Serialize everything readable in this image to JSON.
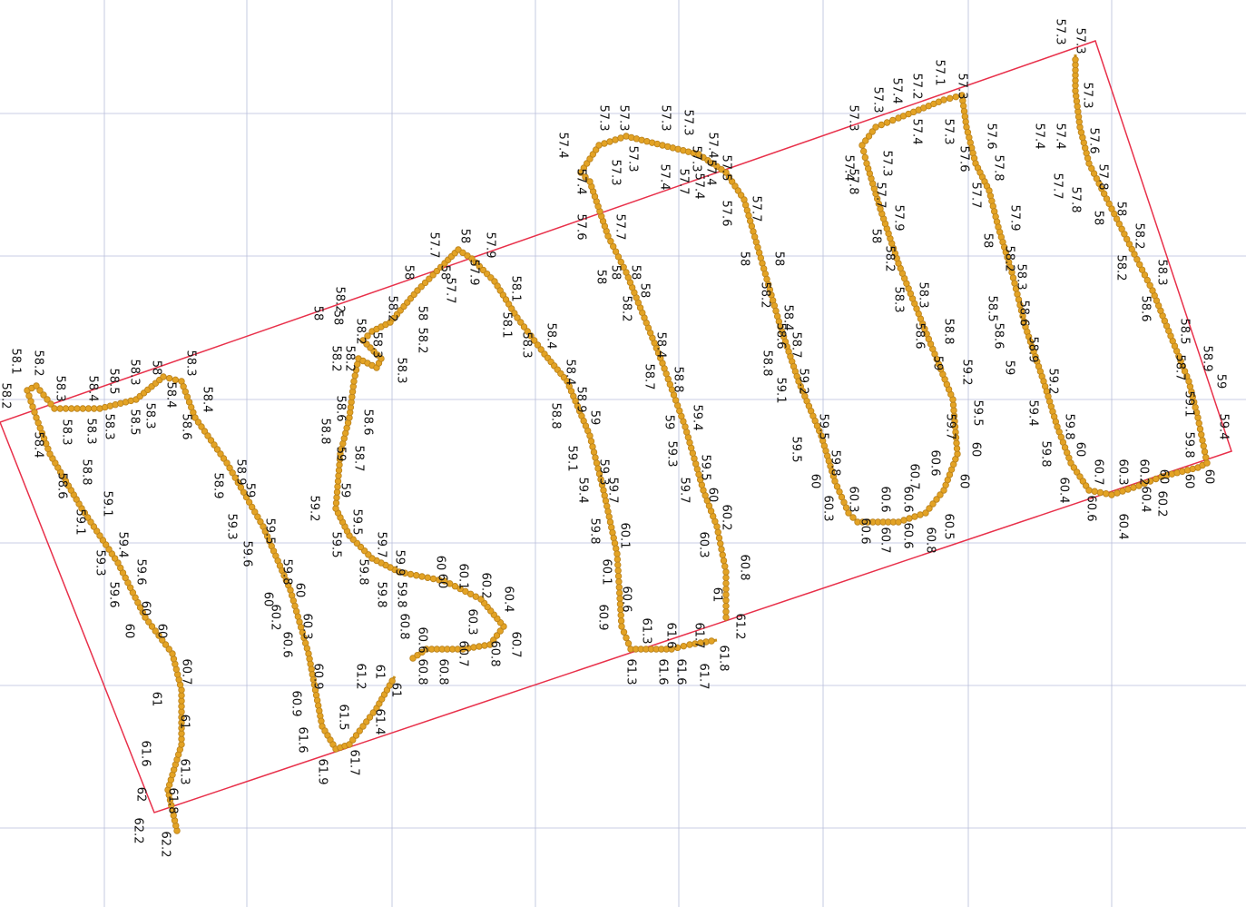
{
  "track_labels": [
    58.1,
    58.2,
    58.2,
    58.3,
    58.4,
    58.3,
    58.6,
    58.4,
    58.3,
    58.8,
    59.1,
    58.5,
    58.3,
    59.1,
    58.3,
    58.5,
    58,
    58.3,
    59.4,
    59.3,
    59.6,
    59.6,
    60,
    60,
    60,
    60.7,
    61,
    61,
    61.6,
    61.3,
    62,
    61.8,
    62.2,
    62.2,
    58.4,
    58.3,
    58.6,
    58.4,
    58.9,
    58.9,
    59,
    59.3,
    59.5,
    59.6,
    59.8,
    60,
    60,
    60.2,
    60.3,
    60.6,
    60.9,
    60.9,
    61.6,
    61.9,
    61.5,
    61.2,
    61,
    61.4,
    61.7,
    61,
    58.2,
    58,
    58,
    58.2,
    58.2,
    58.3,
    58.3,
    58,
    58,
    58.2,
    57.7,
    58,
    57.7,
    58.2,
    58.2,
    58.6,
    58.6,
    58.8,
    59,
    58.7,
    59,
    59.2,
    59.5,
    59.5,
    59.7,
    59.8,
    59.9,
    59.8,
    59.8,
    60.8,
    60.6,
    60.8,
    60.8,
    60,
    60,
    60.1,
    60.2,
    60.3,
    60.7,
    60.4,
    60.7,
    60.8,
    57.9,
    58,
    57.9,
    58.1,
    58.1,
    58.3,
    58.4,
    58.4,
    58.8,
    58.9,
    59,
    59.1,
    59.3,
    59.4,
    59.7,
    59.8,
    60.1,
    60.1,
    60.6,
    60.9,
    61.3,
    61.3,
    61.6,
    61.6,
    61.6,
    61.7,
    61.7,
    61.8,
    61,
    61.2,
    60.8,
    60.2,
    60.3,
    60,
    59.5,
    59.7,
    59.3,
    59.4,
    59,
    58.8,
    58.7,
    58.4,
    58.2,
    58,
    58,
    58,
    58,
    57.7,
    57.6,
    57.4,
    57.4,
    57.3,
    57.3,
    57.3,
    57.3,
    57.3,
    57.3,
    57.3,
    57.4,
    57.4,
    57.4,
    57.7,
    57.4,
    57.5,
    57.6,
    57.7,
    58,
    58,
    58.2,
    58.4,
    58.6,
    58.7,
    58.8,
    59.2,
    59.1,
    59.5,
    59.5,
    59.8,
    60,
    60.3,
    60.3,
    60.6,
    60.6,
    60.7,
    60.6,
    60.6,
    60.7,
    60.8,
    60.5,
    60.6,
    60,
    59.7,
    59.5,
    60,
    59,
    59.2,
    58.8,
    58.6,
    58.3,
    58.3,
    58.2,
    58,
    57.9,
    57.7,
    57.3,
    57.3,
    57.4,
    57.8,
    57.3,
    57.4,
    57.2,
    57.1,
    57.3,
    57.4,
    57.3,
    57.6,
    57.8,
    57.7,
    57.6,
    57.9,
    58,
    58.2,
    58.3,
    58.6,
    58.5,
    58.6,
    58.9,
    59,
    59.2,
    59.4,
    59.8,
    59.8,
    60,
    60.4,
    60.7,
    60.6,
    60.3,
    60.4,
    60.2,
    60.4,
    60.2,
    60,
    60,
    59.8,
    60,
    59.1,
    59.4,
    59,
    58.9,
    58.7,
    58.5,
    58.6,
    58.3,
    58.2,
    58.2,
    58,
    58,
    57.8,
    57.8,
    57.7,
    57.4,
    57.4,
    57.6,
    57.3,
    57.3,
    57.3
  ]
}
